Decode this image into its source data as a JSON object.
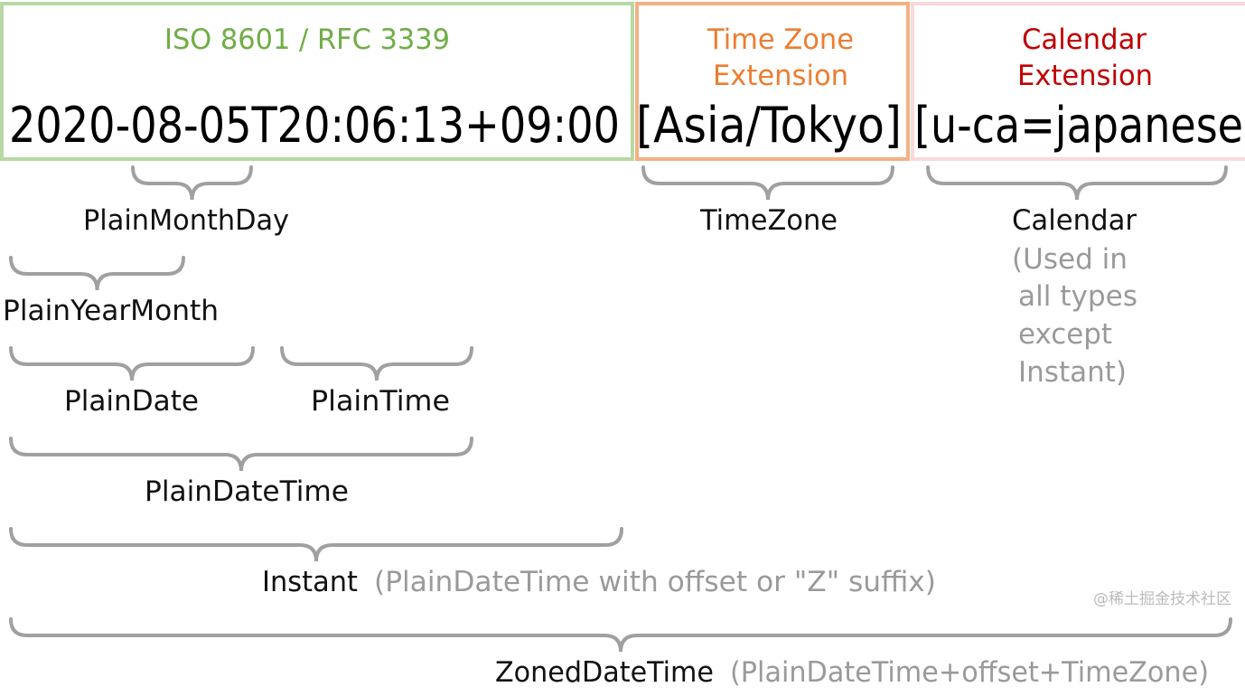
{
  "colors": {
    "iso": "#70ad47",
    "iso_border": "#b8d8a6",
    "tz": "#ed7d31",
    "tz_border": "#f4b183",
    "cal": "#c00000",
    "cal_border": "#f9d9d9",
    "brace": "#a0a0a0",
    "note": "#9a9a9a"
  },
  "sections": {
    "iso": {
      "title": "ISO 8601 / RFC 3339",
      "value": "2020-08-05T20:06:13+09:00"
    },
    "tz": {
      "title_line1": "Time Zone",
      "title_line2": "Extension",
      "value": "[Asia/Tokyo]"
    },
    "cal": {
      "title_line1": "Calendar",
      "title_line2": "Extension",
      "value": "[u-ca=japanese"
    }
  },
  "labels": {
    "plain_month_day": "PlainMonthDay",
    "time_zone": "TimeZone",
    "calendar": "Calendar",
    "calendar_note": [
      "(Used in",
      "all types",
      "except",
      "Instant)"
    ],
    "plain_year_month": "PlainYearMonth",
    "plain_date": "PlainDate",
    "plain_time": "PlainTime",
    "plain_date_time": "PlainDateTime",
    "instant": "Instant",
    "instant_note": " (PlainDateTime with offset or \"Z\" suffix)",
    "zoned_date_time": "ZonedDateTime",
    "zoned_note": " (PlainDateTime+offset+TimeZone)"
  },
  "watermark": "@稀土掘金技术社区"
}
